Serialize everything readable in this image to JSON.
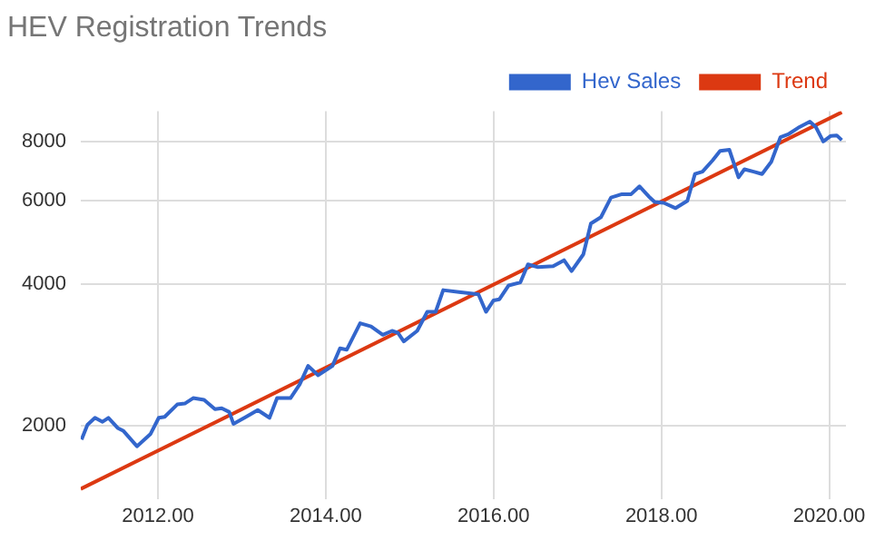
{
  "chart_data": {
    "type": "line",
    "title": "HEV Registration Trends",
    "series": [
      {
        "name": "Hev Sales",
        "color": "#3366cc",
        "x": [
          2011.09,
          2011.16,
          2011.25,
          2011.34,
          2011.41,
          2011.52,
          2011.59,
          2011.75,
          2011.91,
          2012.01,
          2012.08,
          2012.23,
          2012.32,
          2012.42,
          2012.55,
          2012.68,
          2012.76,
          2012.85,
          2012.9,
          2013.05,
          2013.19,
          2013.33,
          2013.42,
          2013.58,
          2013.69,
          2013.79,
          2013.91,
          2014.08,
          2014.17,
          2014.25,
          2014.41,
          2014.54,
          2014.68,
          2014.79,
          2014.86,
          2014.93,
          2015.09,
          2015.21,
          2015.31,
          2015.4,
          2015.61,
          2015.82,
          2015.91,
          2016.0,
          2016.07,
          2016.18,
          2016.32,
          2016.41,
          2016.53,
          2016.71,
          2016.84,
          2016.93,
          2017.07,
          2017.16,
          2017.28,
          2017.4,
          2017.53,
          2017.64,
          2017.74,
          2017.85,
          2017.92,
          2018.03,
          2018.17,
          2018.31,
          2018.4,
          2018.49,
          2018.61,
          2018.7,
          2018.81,
          2018.92,
          2018.99,
          2019.1,
          2019.2,
          2019.31,
          2019.42,
          2019.52,
          2019.63,
          2019.77,
          2019.84,
          2019.93,
          2020.02,
          2020.09,
          2020.15
        ],
        "values": [
          1870,
          2010,
          2080,
          2040,
          2080,
          1980,
          1950,
          1810,
          1920,
          2080,
          2090,
          2220,
          2230,
          2290,
          2270,
          2170,
          2180,
          2140,
          2020,
          2090,
          2160,
          2080,
          2290,
          2290,
          2450,
          2680,
          2560,
          2680,
          2920,
          2900,
          3300,
          3250,
          3120,
          3180,
          3150,
          3020,
          3180,
          3490,
          3490,
          3880,
          3840,
          3800,
          3490,
          3690,
          3710,
          3970,
          4030,
          4400,
          4340,
          4360,
          4490,
          4260,
          4620,
          5370,
          5540,
          6100,
          6200,
          6200,
          6440,
          6130,
          5970,
          5940,
          5790,
          6000,
          6840,
          6920,
          7310,
          7660,
          7700,
          6730,
          7000,
          6920,
          6840,
          7260,
          8190,
          8320,
          8570,
          8830,
          8610,
          8020,
          8240,
          8260,
          8070
        ]
      },
      {
        "name": "Trend",
        "color": "#dc3912",
        "type": "line",
        "x": [
          2011.08,
          2020.15
        ],
        "values": [
          1470,
          9250
        ]
      }
    ],
    "xlim": [
      2011.08,
      2020.2
    ],
    "xticks": [
      {
        "value": 2012,
        "label": "2012.00"
      },
      {
        "value": 2014,
        "label": "2014.00"
      },
      {
        "value": 2016,
        "label": "2016.00"
      },
      {
        "value": 2018,
        "label": "2018.00"
      },
      {
        "value": 2020,
        "label": "2020.00"
      }
    ],
    "ylim": [
      1400,
      9300
    ],
    "yticks": [
      2000,
      4000,
      6000,
      8000
    ],
    "log": "y",
    "grid": true,
    "legend": "top right",
    "marker": "none"
  }
}
